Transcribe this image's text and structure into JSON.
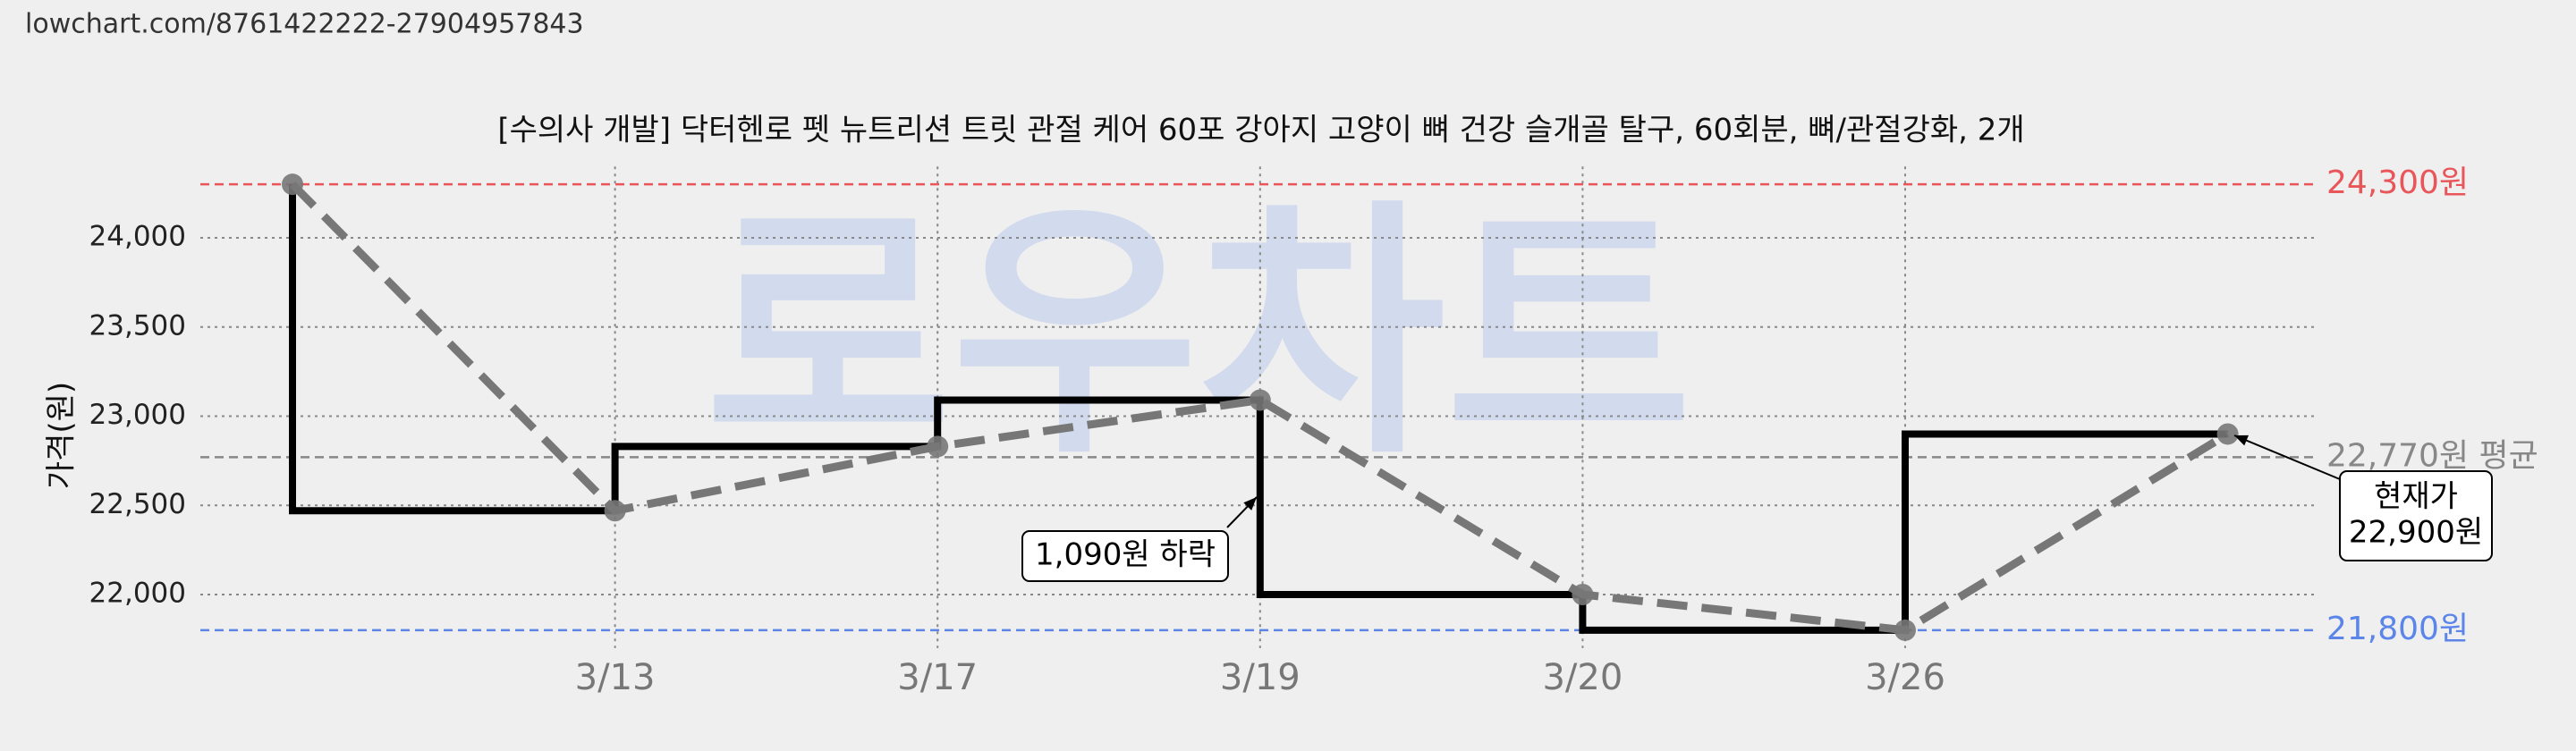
{
  "source": "lowchart.com/8761422222-27904957843",
  "chart_data": {
    "type": "line",
    "title": "[수의사 개발] 닥터헨로 펫 뉴트리션 트릿 관절 케어 60포 강아지 고양이 뼈 건강 슬개골 탈구, 60회분, 뼈/관절강화, 2개",
    "watermark": "로우차트",
    "ylabel": "가격(원)",
    "categories": [
      null,
      "3/13",
      "3/17",
      "3/19",
      "3/20",
      "3/26",
      null
    ],
    "values": [
      24300,
      22470,
      22830,
      23090,
      22000,
      21800,
      22900
    ],
    "color": "#777777",
    "step_color": "#000000",
    "ylim": [
      21700,
      24400
    ],
    "yticks": [
      {
        "value": 22000,
        "label": "22,000"
      },
      {
        "value": 22500,
        "label": "22,500"
      },
      {
        "value": 23000,
        "label": "23,000"
      },
      {
        "value": 23500,
        "label": "23,500"
      },
      {
        "value": 24000,
        "label": "24,000"
      }
    ],
    "grid": true,
    "reference_lines": [
      {
        "value": 24300,
        "label": "24,300원",
        "color": "#e8565a"
      },
      {
        "value": 22770,
        "label": "22,770원 평균",
        "color": "#888888"
      },
      {
        "value": 21800,
        "label": "21,800원",
        "color": "#5b85e8"
      }
    ],
    "annotations": [
      {
        "lines": [
          "1,090원 하락"
        ]
      },
      {
        "lines": [
          "현재가",
          "22,900원"
        ]
      }
    ]
  }
}
